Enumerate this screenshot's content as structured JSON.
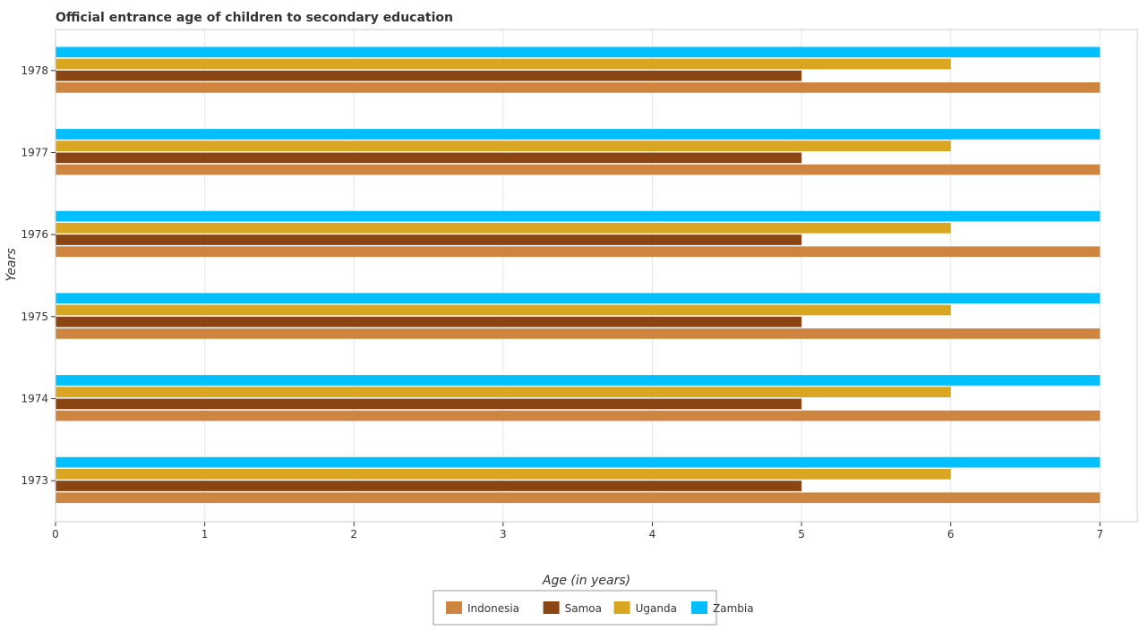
{
  "chart_data": {
    "type": "bar",
    "orientation": "horizontal",
    "title": "Official entrance age of children to secondary education",
    "xlabel": "Age (in years)",
    "ylabel": "Years",
    "xlim": [
      0,
      7.25
    ],
    "xticks": [
      0,
      1,
      2,
      3,
      4,
      5,
      6,
      7
    ],
    "grid": "x",
    "legend_position": "bottom-center",
    "categories": [
      "1973",
      "1974",
      "1975",
      "1976",
      "1977",
      "1978"
    ],
    "series": [
      {
        "name": "Indonesia",
        "color": "#cd853f",
        "values": [
          7,
          7,
          7,
          7,
          7,
          7
        ]
      },
      {
        "name": "Samoa",
        "color": "#8b4513",
        "values": [
          5,
          5,
          5,
          5,
          5,
          5
        ]
      },
      {
        "name": "Uganda",
        "color": "#daa520",
        "values": [
          6,
          6,
          6,
          6,
          6,
          6
        ]
      },
      {
        "name": "Zambia",
        "color": "#00bfff",
        "values": [
          7,
          7,
          7,
          7,
          7,
          7
        ]
      }
    ]
  }
}
